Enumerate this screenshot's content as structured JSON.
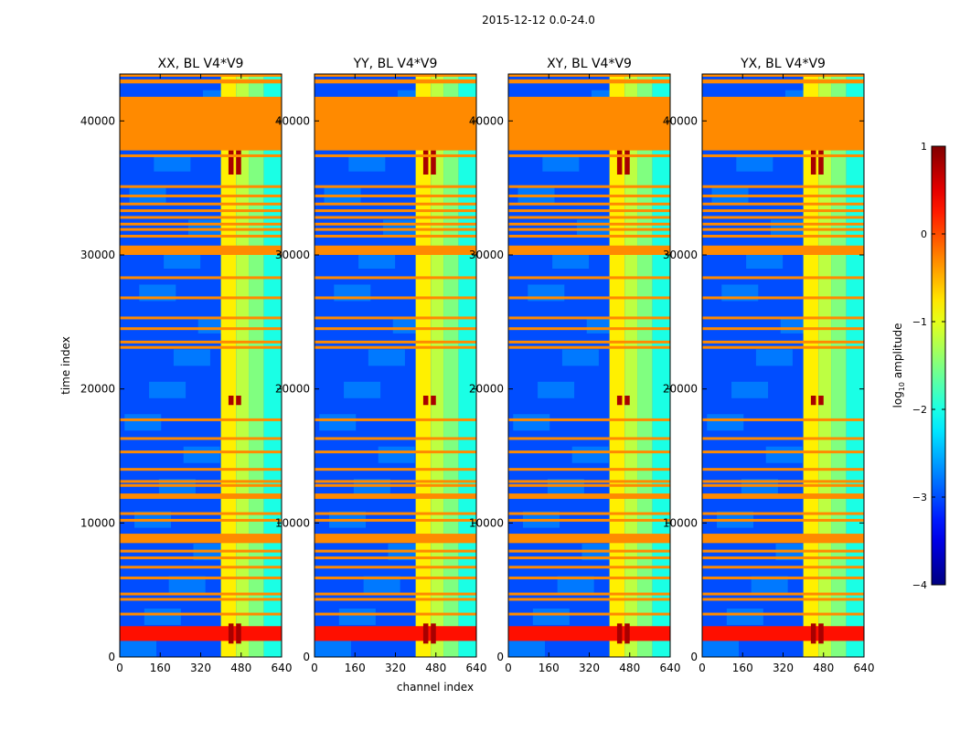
{
  "figure": {
    "suptitle": "2015-12-12 0.0-24.0",
    "colormap": "jet"
  },
  "chart_data": {
    "type": "heatmap",
    "suptitle": "2015-12-12 0.0-24.0",
    "xlabel": "channel index",
    "ylabel": "time index",
    "xlim": [
      0,
      640
    ],
    "ylim": [
      0,
      43500
    ],
    "xticks": [
      "0",
      "160",
      "320",
      "480",
      "640"
    ],
    "yticks": [
      "0",
      "10000",
      "20000",
      "30000",
      "40000"
    ],
    "panels": [
      {
        "title": "XX, BL V4*V9",
        "pol": "XX"
      },
      {
        "title": "YY, BL V4*V9",
        "pol": "YY"
      },
      {
        "title": "XY, BL V4*V9",
        "pol": "XY"
      },
      {
        "title": "YX, BL V4*V9",
        "pol": "YX"
      }
    ],
    "colorbar": {
      "label_prefix": "log",
      "label_sub": "10",
      "label_suffix": " amplitude",
      "range": [
        -4,
        1
      ],
      "ticks": [
        "1",
        "0",
        "−1",
        "−2",
        "−3",
        "−4"
      ]
    },
    "background_level": -3,
    "flagged_time_ranges": [
      [
        37800,
        41800
      ],
      [
        30000,
        30700
      ],
      [
        11800,
        12200
      ],
      [
        8500,
        9200
      ],
      [
        42800,
        43100
      ]
    ],
    "flagged_level": -0.3,
    "rfi_channel_bands": [
      {
        "from": 400,
        "to": 460,
        "level": -0.8
      },
      {
        "from": 460,
        "to": 510,
        "level": -1.2
      },
      {
        "from": 510,
        "to": 570,
        "level": -1.5
      },
      {
        "from": 570,
        "to": 640,
        "level": -2.0
      }
    ],
    "strong_rfi_channels": [
      [
        430,
        450
      ],
      [
        460,
        480
      ]
    ],
    "strong_rfi_time_ranges": [
      [
        1000,
        2500
      ],
      [
        36000,
        37800
      ],
      [
        18800,
        19500
      ]
    ],
    "strong_rfi_level": 0.8,
    "broadband_rfi_time_range": [
      1200,
      2300
    ],
    "broadband_rfi_level": 0.3,
    "thin_flag_times": [
      3200,
      4300,
      4700,
      5900,
      6700,
      7400,
      7900,
      10200,
      10700,
      12800,
      13100,
      14000,
      15300,
      16300,
      17700,
      23100,
      23500,
      24500,
      25300,
      26800,
      28300,
      31400,
      31900,
      32300,
      32800,
      33300,
      33800,
      34400,
      35100,
      37400,
      43400
    ]
  }
}
